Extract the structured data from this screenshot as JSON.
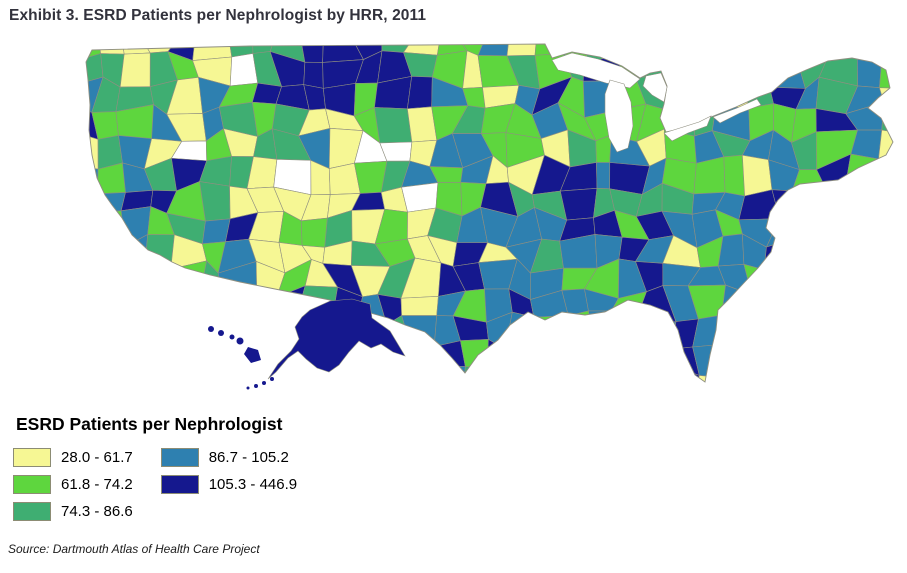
{
  "page": {
    "title": "Exhibit 3. ESRD Patients per Nephrologist by HRR, 2011",
    "source": "Source: Dartmouth Atlas of Health Care Project"
  },
  "legend": {
    "title": "ESRD Patients per Nephrologist",
    "items": [
      {
        "label": "28.0 - 61.7",
        "color": "#F6F794"
      },
      {
        "label": "61.8 - 74.2",
        "color": "#5ED63E"
      },
      {
        "label": "74.3 - 86.6",
        "color": "#3FAE72"
      },
      {
        "label": "86.7 - 105.2",
        "color": "#2E80B0"
      },
      {
        "label": "105.3 - 446.9",
        "color": "#15188E"
      }
    ]
  },
  "map": {
    "no_data_color": "#FFFFFF",
    "boundary_color": "#8f8f80",
    "water_color": "#FFFFFF"
  }
}
